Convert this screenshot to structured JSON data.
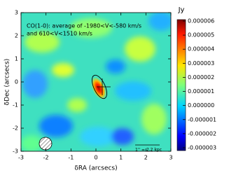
{
  "chart_data": {
    "type": "image",
    "annotation": [
      "CO(1-0): average of -1980<V<-580 km/s",
      "and 610<V<1510  km/s"
    ],
    "scale_label": "1'' = 2.2 kpc",
    "x_label": "δRA (arcsecs)",
    "y_label": "δDec (arcsecs)",
    "xlim": [
      -3,
      3
    ],
    "xticks": [
      -3,
      -2,
      -1,
      0,
      1,
      2,
      3
    ],
    "ylim": [
      -3,
      3
    ],
    "yticks": [
      -3,
      -2,
      -1,
      0,
      1,
      2,
      3
    ],
    "colorbar": {
      "label": "Jy",
      "lim": [
        -3.2e-06,
        6.1e-06
      ],
      "ticks": [
        {
          "value": 6e-06,
          "label": "0.000006"
        },
        {
          "value": 5e-06,
          "label": "0.000005"
        },
        {
          "value": 4e-06,
          "label": "0.000004"
        },
        {
          "value": 3e-06,
          "label": "0.000003"
        },
        {
          "value": 2e-06,
          "label": "0.000002"
        },
        {
          "value": 1e-06,
          "label": "0.000001"
        },
        {
          "value": 0,
          "label": "0.000000"
        },
        {
          "value": -1e-06,
          "label": "-0.000001"
        },
        {
          "value": -2e-06,
          "label": "-0.000002"
        },
        {
          "value": -3e-06,
          "label": "-0.000003"
        }
      ]
    }
  }
}
